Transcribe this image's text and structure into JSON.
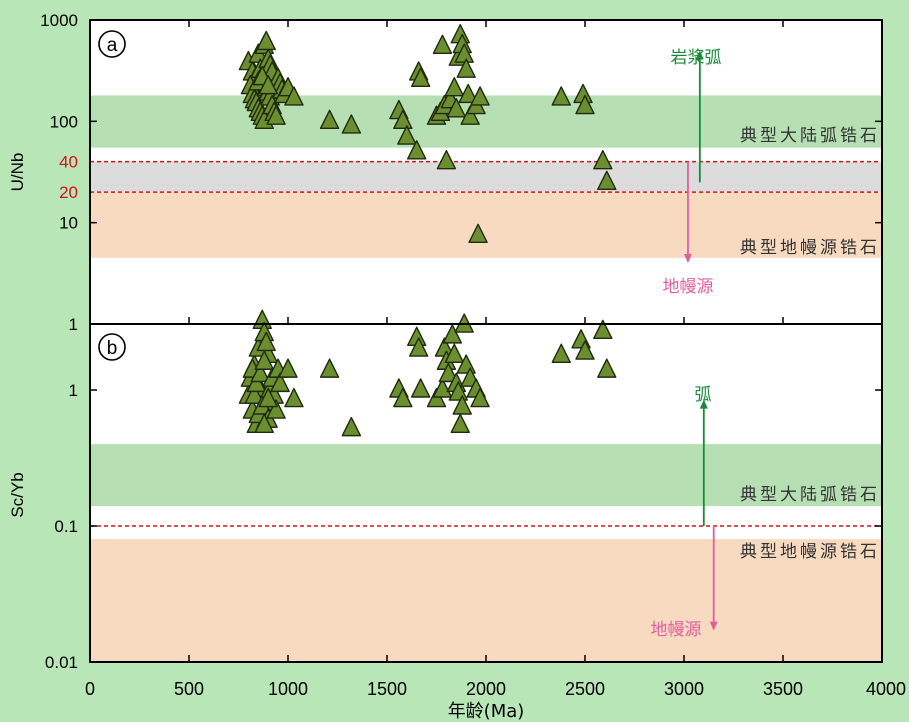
{
  "chart_data": [
    {
      "panel": "a",
      "type": "scatter",
      "marker": "triangle",
      "ylabel": "U/Nb",
      "y_scale": "log",
      "ylim": [
        1,
        1000
      ],
      "xlim": [
        0,
        4000
      ],
      "y_ticks": [
        "1",
        "10",
        "100",
        "1000"
      ],
      "ref_lines": [
        {
          "y": 40,
          "label": "40"
        },
        {
          "y": 20,
          "label": "20"
        }
      ],
      "bands": [
        {
          "name": "典型大陆弧锆石",
          "y_range": [
            55,
            180
          ],
          "color": "#b6e0b4"
        },
        {
          "name": "gray",
          "y_range": [
            20,
            40
          ],
          "color": "#dcdcdc"
        },
        {
          "name": "典型地幔源锆石",
          "y_range": [
            4.5,
            20
          ],
          "color": "#f8dac0"
        }
      ],
      "annotations": [
        "岩浆弧",
        "典型大陆弧锆石",
        "典型地幔源锆石",
        "地幔源"
      ],
      "arrows": [
        {
          "x": 3080,
          "from": 25,
          "to": 500,
          "color": "#1a8a3a"
        },
        {
          "x": 3020,
          "from": 40,
          "to": 4,
          "color": "#e0609f"
        }
      ],
      "points": [
        [
          800,
          380
        ],
        [
          820,
          300
        ],
        [
          830,
          250
        ],
        [
          840,
          200
        ],
        [
          850,
          450
        ],
        [
          860,
          320
        ],
        [
          870,
          280
        ],
        [
          880,
          550
        ],
        [
          890,
          600
        ],
        [
          900,
          400
        ],
        [
          910,
          350
        ],
        [
          920,
          300
        ],
        [
          810,
          220
        ],
        [
          820,
          180
        ],
        [
          830,
          160
        ],
        [
          840,
          150
        ],
        [
          850,
          130
        ],
        [
          860,
          120
        ],
        [
          870,
          110
        ],
        [
          880,
          100
        ],
        [
          890,
          210
        ],
        [
          900,
          190
        ],
        [
          910,
          170
        ],
        [
          920,
          140
        ],
        [
          930,
          120
        ],
        [
          940,
          110
        ],
        [
          950,
          260
        ],
        [
          960,
          230
        ],
        [
          970,
          200
        ],
        [
          980,
          180
        ],
        [
          1000,
          210
        ],
        [
          1030,
          170
        ],
        [
          850,
          240
        ],
        [
          870,
          270
        ],
        [
          900,
          220
        ],
        [
          1210,
          100
        ],
        [
          1320,
          90
        ],
        [
          1560,
          125
        ],
        [
          1580,
          100
        ],
        [
          1600,
          70
        ],
        [
          1650,
          50
        ],
        [
          1660,
          300
        ],
        [
          1670,
          260
        ],
        [
          1750,
          110
        ],
        [
          1770,
          120
        ],
        [
          1780,
          550
        ],
        [
          1790,
          140
        ],
        [
          1800,
          40
        ],
        [
          1820,
          160
        ],
        [
          1840,
          210
        ],
        [
          1850,
          130
        ],
        [
          1860,
          420
        ],
        [
          1870,
          700
        ],
        [
          1880,
          560
        ],
        [
          1890,
          450
        ],
        [
          1900,
          320
        ],
        [
          1910,
          180
        ],
        [
          1920,
          110
        ],
        [
          1950,
          140
        ],
        [
          1970,
          170
        ],
        [
          1960,
          7.5
        ],
        [
          2380,
          170
        ],
        [
          2490,
          180
        ],
        [
          2500,
          140
        ],
        [
          2590,
          40
        ],
        [
          2610,
          25
        ]
      ]
    },
    {
      "panel": "b",
      "type": "scatter",
      "marker": "triangle",
      "xlabel": "年龄(Ma)",
      "ylabel": "Sc/Yb",
      "y_scale": "log",
      "ylim": [
        0.01,
        4.5
      ],
      "xlim": [
        0,
        4000
      ],
      "x_ticks": [
        "0",
        "500",
        "1000",
        "1500",
        "2000",
        "2500",
        "3000",
        "3500",
        "4000"
      ],
      "y_ticks": [
        "0.01",
        "0.1",
        "1"
      ],
      "ref_lines": [
        {
          "y": 0.1
        }
      ],
      "bands": [
        {
          "name": "典型大陆弧锆石",
          "y_range": [
            0.14,
            0.4
          ],
          "color": "#b6e0b4"
        },
        {
          "name": "典型地幔源锆石",
          "y_range": [
            0.01,
            0.08
          ],
          "color": "#f8dac0"
        }
      ],
      "annotations": [
        "弧",
        "典型大陆弧锆石",
        "典型地幔源锆石",
        "地幔源"
      ],
      "arrows": [
        {
          "x": 3100,
          "from": 0.1,
          "to": 0.85,
          "color": "#1a8a3a"
        },
        {
          "x": 3150,
          "from": 0.1,
          "to": 0.017,
          "color": "#e0609f"
        }
      ],
      "points": [
        [
          800,
          0.9
        ],
        [
          810,
          1.2
        ],
        [
          820,
          0.7
        ],
        [
          830,
          1.5
        ],
        [
          840,
          0.55
        ],
        [
          850,
          2.0
        ],
        [
          860,
          1.0
        ],
        [
          870,
          3.2
        ],
        [
          880,
          2.6
        ],
        [
          890,
          0.6
        ],
        [
          900,
          1.8
        ],
        [
          910,
          0.8
        ],
        [
          820,
          1.4
        ],
        [
          830,
          0.9
        ],
        [
          840,
          1.1
        ],
        [
          850,
          0.65
        ],
        [
          860,
          1.3
        ],
        [
          870,
          0.75
        ],
        [
          880,
          1.6
        ],
        [
          890,
          2.2
        ],
        [
          900,
          0.6
        ],
        [
          910,
          1.0
        ],
        [
          920,
          1.2
        ],
        [
          930,
          0.9
        ],
        [
          940,
          0.7
        ],
        [
          950,
          1.4
        ],
        [
          960,
          1.1
        ],
        [
          880,
          0.55
        ],
        [
          900,
          0.85
        ],
        [
          1000,
          1.4
        ],
        [
          1030,
          0.85
        ],
        [
          1210,
          1.4
        ],
        [
          1320,
          0.52
        ],
        [
          1560,
          1.0
        ],
        [
          1580,
          0.85
        ],
        [
          1650,
          2.4
        ],
        [
          1660,
          2.0
        ],
        [
          1670,
          1.0
        ],
        [
          1750,
          0.85
        ],
        [
          1780,
          1.0
        ],
        [
          1790,
          2.0
        ],
        [
          1800,
          1.6
        ],
        [
          1810,
          1.3
        ],
        [
          1830,
          2.5
        ],
        [
          1840,
          1.8
        ],
        [
          1850,
          1.1
        ],
        [
          1860,
          0.95
        ],
        [
          1870,
          0.55
        ],
        [
          1880,
          0.75
        ],
        [
          1890,
          3.0
        ],
        [
          1900,
          1.5
        ],
        [
          1920,
          1.2
        ],
        [
          1950,
          1.0
        ],
        [
          1970,
          0.85
        ],
        [
          2380,
          1.8
        ],
        [
          2480,
          2.3
        ],
        [
          2500,
          1.9
        ],
        [
          2590,
          2.7
        ],
        [
          2610,
          1.4
        ]
      ]
    }
  ]
}
